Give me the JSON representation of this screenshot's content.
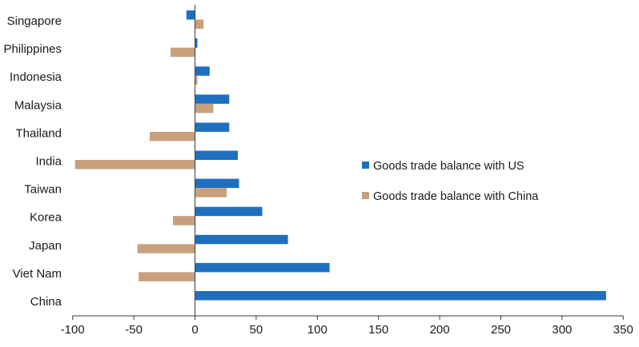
{
  "chart_data": {
    "type": "bar",
    "orientation": "horizontal",
    "categories": [
      "Singapore",
      "Philippines",
      "Indonesia",
      "Malaysia",
      "Thailand",
      "India",
      "Taiwan",
      "Korea",
      "Japan",
      "Viet Nam",
      "China"
    ],
    "series": [
      {
        "name": "Goods trade balance with US",
        "color": "#1f6fc0",
        "values": [
          -7,
          2,
          12,
          28,
          28,
          35,
          36,
          55,
          76,
          110,
          336
        ]
      },
      {
        "name": "Goods trade balance with China",
        "color": "#c9a07c",
        "values": [
          7,
          -20,
          2,
          15,
          -37,
          -98,
          26,
          -18,
          -47,
          -46,
          0
        ]
      }
    ],
    "x_ticks": [
      -100,
      -50,
      0,
      50,
      100,
      150,
      200,
      250,
      300,
      350
    ],
    "x_tick_labels": [
      "-100",
      "-50",
      "0",
      "50",
      "100",
      "150",
      "200",
      "250",
      "300",
      "350"
    ],
    "xlim": [
      -100,
      350
    ],
    "title": "",
    "xlabel": "",
    "ylabel": "",
    "grid": false,
    "legend_position": "right"
  }
}
